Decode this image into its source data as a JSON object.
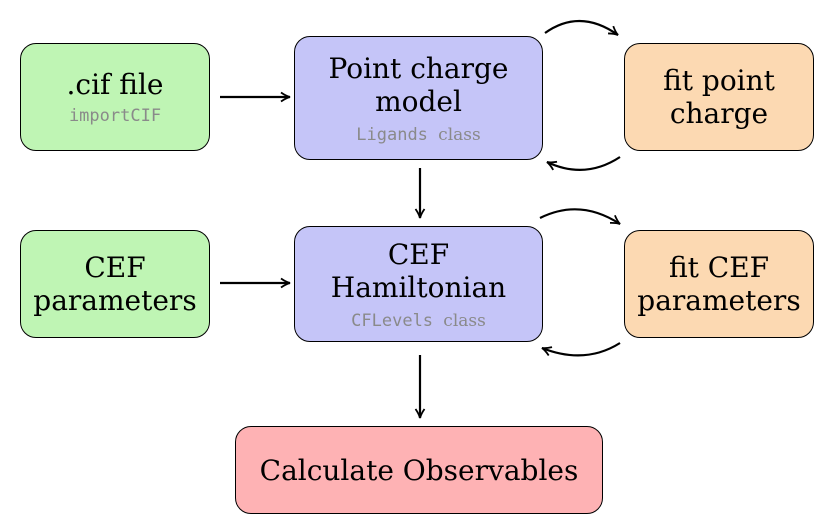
{
  "boxes": {
    "cif": {
      "title": ".cif file",
      "code": "importCIF"
    },
    "point_charge": {
      "title_line1": "Point charge",
      "title_line2": "model",
      "code": "Ligands",
      "code_suffix": "class"
    },
    "fit_point_charge": {
      "line1": "fit point",
      "line2": "charge"
    },
    "cef_params": {
      "line1": "CEF",
      "line2": "parameters"
    },
    "hamiltonian": {
      "line1": "CEF",
      "line2": "Hamiltonian",
      "code": "CFLevels",
      "code_suffix": "class"
    },
    "fit_cef": {
      "line1": "fit CEF",
      "line2": "parameters"
    },
    "observables": {
      "title": "Calculate Observables"
    }
  },
  "colors": {
    "input": "#bff5b4",
    "model": "#c5c5f8",
    "fit": "#fcd9b2",
    "output": "#feb2b4"
  }
}
